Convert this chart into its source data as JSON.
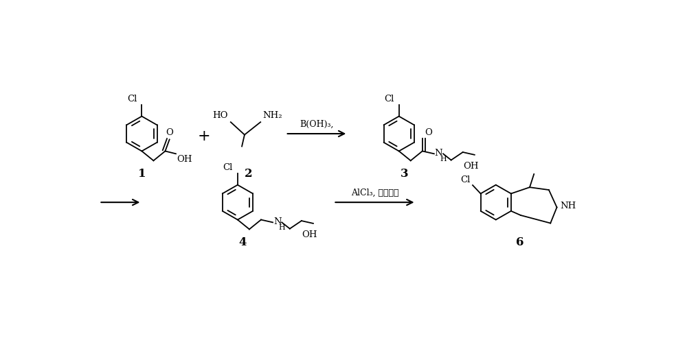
{
  "background_color": "#ffffff",
  "reagent1": "B(OH)₃,",
  "reagent2": "AlCl₃, 邻二氯苯",
  "label1": "1",
  "label2": "2",
  "label3": "3",
  "label4": "4",
  "label6": "6",
  "plus": "+",
  "font_size": 10
}
